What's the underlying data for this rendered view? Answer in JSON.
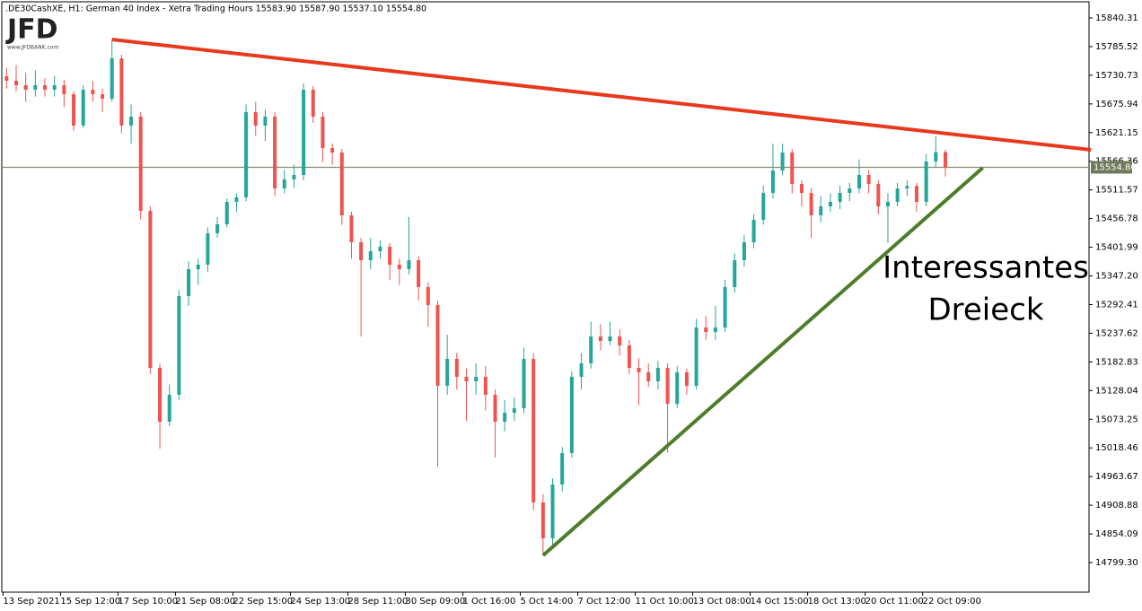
{
  "chart_data": {
    "type": "candlestick",
    "header": ".DE30CashXE, H1:  German 40 Index  - Xetra Trading Hours  15583.90 15587.90 15537.10 15554.80",
    "logo": "JFD",
    "logo_url": "www.JFDBANK.com",
    "annotation": [
      "Interessantes",
      "Dreieck"
    ],
    "categories": [
      "13 Sep 2021",
      null,
      null,
      null,
      null,
      null,
      "15 Sep 12:00",
      null,
      null,
      null,
      null,
      null,
      "17 Sep 10:00",
      null,
      null,
      null,
      null,
      null,
      "21 Sep 08:00",
      null,
      null,
      null,
      null,
      null,
      "22 Sep 15:00",
      null,
      null,
      null,
      null,
      null,
      "24 Sep 13:00",
      null,
      null,
      null,
      null,
      null,
      "28 Sep 11:00",
      null,
      null,
      null,
      null,
      null,
      "30 Sep 09:00",
      null,
      null,
      null,
      null,
      null,
      "1 Oct 16:00",
      null,
      null,
      null,
      null,
      null,
      "5 Oct 14:00",
      null,
      null,
      null,
      null,
      null,
      "7 Oct 12:00",
      null,
      null,
      null,
      null,
      null,
      "11 Oct 10:00",
      null,
      null,
      null,
      null,
      null,
      "13 Oct 08:00",
      null,
      null,
      null,
      null,
      null,
      "14 Oct 15:00",
      null,
      null,
      null,
      null,
      null,
      "18 Oct 13:00",
      null,
      null,
      null,
      null,
      null,
      "20 Oct 11:00",
      null,
      null,
      null,
      null,
      null,
      "22 Oct 09:00",
      null,
      null
    ],
    "open": [
      15728.8,
      15720.2,
      15711.7,
      15703.1,
      15711.7,
      15703.1,
      15711.7,
      15694.5,
      15634.5,
      15703.1,
      15694.5,
      15685.9,
      15763.1,
      15634.5,
      15651.6,
      15471.6,
      15171.4,
      15068.5,
      15120.0,
      15308.6,
      15360.1,
      15368.7,
      15428.7,
      15445.8,
      15488.7,
      15497.3,
      15660.2,
      15634.5,
      15651.6,
      15514.4,
      15531.6,
      15540.2,
      15703.1,
      15651.6,
      15591.6,
      15583.0,
      15463.0,
      15411.5,
      15377.2,
      15394.4,
      15403.0,
      15368.7,
      15360.1,
      15377.2,
      15325.8,
      15291.5,
      15137.1,
      15188.6,
      15154.3,
      15145.7,
      15154.3,
      15120.0,
      15068.5,
      15085.7,
      15094.3,
      15188.6,
      14914.2,
      14845.6,
      14948.5,
      15008.5,
      15154.3,
      15180.0,
      15231.5,
      15222.9,
      15231.5,
      15214.3,
      15171.4,
      15162.9,
      15145.7,
      15171.4,
      15102.8,
      15162.9,
      15137.1,
      15248.6,
      15240,
      15248.6,
      15325.8,
      15377.2,
      15411.5,
      15454.4,
      15505.9,
      15548.7,
      15583.0,
      15523.0,
      15505.9,
      15463.0,
      15480.1,
      15488.7,
      15505.9,
      15514.4,
      15540.2,
      15523.0,
      15480.1,
      15488.7,
      15514.4,
      15519,
      15488.7,
      15565.9,
      15583.9
    ],
    "high": [
      15745,
      15750,
      15735,
      15740,
      15725,
      15730,
      15722,
      15700,
      15712,
      15720,
      15705,
      15799.1,
      15770,
      15675,
      15660,
      15480,
      15180,
      15140,
      15320,
      15375,
      15380,
      15440,
      15460,
      15495,
      15505,
      15675,
      15680,
      15665,
      15660,
      15550,
      15560,
      15715,
      15710,
      15660,
      15600,
      15590,
      15470,
      15420,
      15420,
      15415,
      15410,
      15380,
      15460,
      15385,
      15335,
      15300,
      15235,
      15200,
      15170,
      15180,
      15175,
      15130,
      15110,
      15115,
      15210,
      15200,
      14930,
      14960,
      15020,
      15165,
      15200,
      15260,
      15255,
      15260,
      15245,
      15225,
      15190,
      15180,
      15185,
      15180,
      15175,
      15170,
      15265,
      15270,
      15290,
      15340,
      15390,
      15425,
      15465,
      15520,
      15600,
      15600,
      15590,
      15530,
      15515,
      15500,
      15505,
      15520,
      15525,
      15570,
      15550,
      15530,
      15505,
      15525,
      15530,
      15525,
      15580,
      15613.9,
      15587.9
    ],
    "low": [
      15705,
      15700,
      15680,
      15690,
      15690,
      15690,
      15670,
      15625,
      15630,
      15680,
      15660,
      15680,
      15620,
      15600,
      15455,
      15160,
      15017,
      15060,
      15110,
      15290,
      15330,
      15355,
      15420,
      15440,
      15470,
      15490,
      15615,
      15605,
      15500,
      15505,
      15515,
      15530,
      15640,
      15565,
      15560,
      15445,
      15380,
      15231,
      15360,
      15380,
      15340,
      15330,
      15350,
      15300,
      15250,
      14982.8,
      15120,
      15130,
      15070,
      15120,
      15090,
      15000,
      15050,
      15070,
      15085,
      14900,
      14813,
      14830,
      14935,
      15000,
      15130,
      15170,
      15205,
      15215,
      15195,
      15160,
      15100,
      15135,
      15130,
      15010,
      15095,
      15120,
      15130,
      15225,
      15225,
      15240,
      15315,
      15365,
      15400,
      15445,
      15495,
      15540,
      15505,
      15480,
      15420,
      15450,
      15470,
      15475,
      15490,
      15505,
      15505,
      15465,
      15410,
      15480,
      15500,
      15470,
      15480,
      15555,
      15537.1
    ],
    "close": [
      15720.2,
      15711.7,
      15703.1,
      15711.7,
      15703.1,
      15711.7,
      15694.5,
      15634.5,
      15703.1,
      15694.5,
      15685.9,
      15763.1,
      15634.5,
      15651.6,
      15471.6,
      15171.4,
      15068.5,
      15120.0,
      15308.6,
      15360.1,
      15368.7,
      15428.7,
      15445.8,
      15488.7,
      15497.3,
      15660.2,
      15634.5,
      15651.6,
      15514.4,
      15531.6,
      15540.2,
      15703.1,
      15651.6,
      15591.6,
      15583.0,
      15463.0,
      15411.5,
      15377.2,
      15394.4,
      15403.0,
      15368.7,
      15360.1,
      15377.2,
      15325.8,
      15291.5,
      15137.1,
      15188.6,
      15154.3,
      15145.7,
      15154.3,
      15120.0,
      15068.5,
      15085.7,
      15094.3,
      15188.6,
      14914.2,
      14845.6,
      14948.5,
      15008.5,
      15154.3,
      15180.0,
      15231.5,
      15222.9,
      15231.5,
      15214.3,
      15171.4,
      15162.9,
      15145.7,
      15171.4,
      15102.8,
      15162.9,
      15137.1,
      15248.6,
      15240,
      15248.6,
      15325.8,
      15377.2,
      15411.5,
      15454.4,
      15505.9,
      15548.7,
      15583.0,
      15523.0,
      15505.9,
      15463.0,
      15480.1,
      15488.7,
      15505.9,
      15514.4,
      15540.2,
      15523.0,
      15480.1,
      15488.7,
      15514.4,
      15519,
      15488.7,
      15565.9,
      15583.9,
      15554.8
    ],
    "up_color": "#26a69a",
    "down_color": "#ef5350",
    "ylim": [
      14742.7,
      15874.6
    ],
    "yticks": [
      15840.31,
      15785.52,
      15730.73,
      15675.94,
      15621.15,
      15566.36,
      15511.57,
      15456.78,
      15401.99,
      {
        "value": 15347.2,
        "label": "15347.20"
      },
      15292.41,
      15237.62,
      15182.83,
      15128.04,
      15073.25,
      15018.46,
      14963.67,
      14908.88,
      14854.09,
      {
        "value": 14799.3,
        "label": "14799.30"
      }
    ],
    "current_price": {
      "value": 15554.8,
      "label": "15554.80"
    },
    "trendlines": [
      {
        "color": "#e8391d",
        "x": [
          11,
          113.2
        ],
        "y": [
          15799.1,
          15588.2
        ]
      },
      {
        "color": "#4e7d2a",
        "x": [
          56,
          101.9
        ],
        "y": [
          14813,
          15553.9
        ]
      }
    ]
  }
}
